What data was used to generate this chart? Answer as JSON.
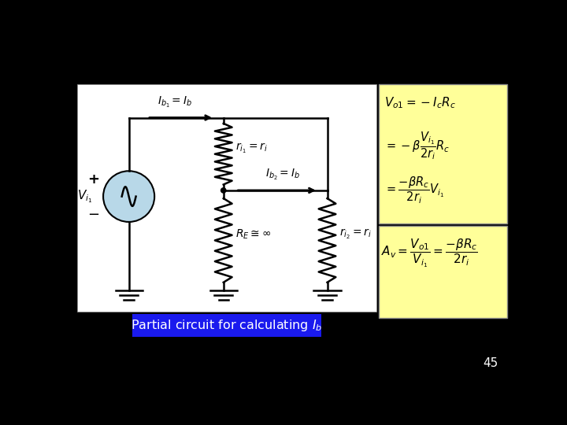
{
  "bg_color": "#000000",
  "circuit_bg": "#ffffff",
  "yellow_color": "#ffff99",
  "blue_color": "#1a1aee",
  "slide_num": "45",
  "caption": "Partial circuit for calculating $I_b$",
  "eq1": "$V_{o1} = -I_c R_c$",
  "eq2": "$= -\\beta \\dfrac{V_{i_1}}{2r_i} R_c$",
  "eq3": "$= \\dfrac{-\\beta R_c}{2r_i} V_{i_1}$",
  "eq4": "$A_v = \\dfrac{V_{o1}}{V_{i_1}} = \\dfrac{-\\beta R_c}{2r_i}$"
}
